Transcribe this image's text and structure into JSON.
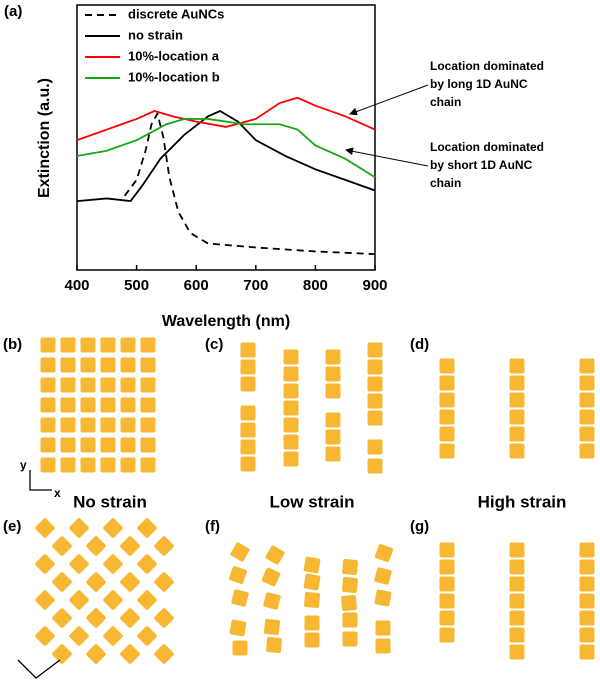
{
  "chart_data": {
    "type": "line",
    "panel_label": "(a)",
    "x_label": "Wavelength (nm)",
    "y_label": "Extinction (a.u.)",
    "xlim": [
      400,
      900
    ],
    "xticks": [
      400,
      500,
      600,
      700,
      800,
      900
    ],
    "ylim": [
      0,
      1
    ],
    "legend": "upper left",
    "series": [
      {
        "name": "discrete  AuNCs",
        "color": "#000000",
        "dashed": true,
        "x": [
          480,
          500,
          515,
          525,
          535,
          545,
          555,
          570,
          590,
          620,
          700,
          800,
          900
        ],
        "values": [
          0.28,
          0.34,
          0.45,
          0.55,
          0.59,
          0.5,
          0.35,
          0.22,
          0.14,
          0.1,
          0.085,
          0.07,
          0.06
        ]
      },
      {
        "name": "no strain",
        "color": "#000000",
        "x": [
          400,
          450,
          490,
          510,
          540,
          580,
          620,
          640,
          670,
          700,
          750,
          800,
          850,
          900
        ],
        "values": [
          0.26,
          0.27,
          0.26,
          0.32,
          0.42,
          0.51,
          0.58,
          0.6,
          0.56,
          0.49,
          0.43,
          0.38,
          0.34,
          0.3
        ]
      },
      {
        "name": "10%-location a",
        "color": "#ff0000",
        "x": [
          400,
          450,
          500,
          530,
          560,
          600,
          650,
          700,
          740,
          770,
          800,
          850,
          900
        ],
        "values": [
          0.49,
          0.53,
          0.57,
          0.6,
          0.58,
          0.56,
          0.54,
          0.57,
          0.63,
          0.65,
          0.62,
          0.58,
          0.53
        ]
      },
      {
        "name": "10%-location b",
        "color": "#17a817",
        "x": [
          400,
          450,
          500,
          550,
          580,
          620,
          680,
          740,
          770,
          800,
          850,
          900
        ],
        "values": [
          0.43,
          0.45,
          0.49,
          0.55,
          0.57,
          0.57,
          0.55,
          0.55,
          0.53,
          0.47,
          0.42,
          0.35
        ]
      }
    ],
    "annotations": [
      {
        "lines": [
          "Location dominated",
          "by long 1D AuNC",
          "chain"
        ]
      },
      {
        "lines": [
          "Location dominated",
          "by short 1D AuNC",
          "chain"
        ]
      }
    ]
  },
  "panels": {
    "labels": [
      "(b)",
      "(c)",
      "(d)",
      "(e)",
      "(f)",
      "(g)"
    ],
    "captions": [
      "No strain",
      "Low strain",
      "High strain"
    ],
    "axes_top": [
      "y",
      "x"
    ]
  }
}
